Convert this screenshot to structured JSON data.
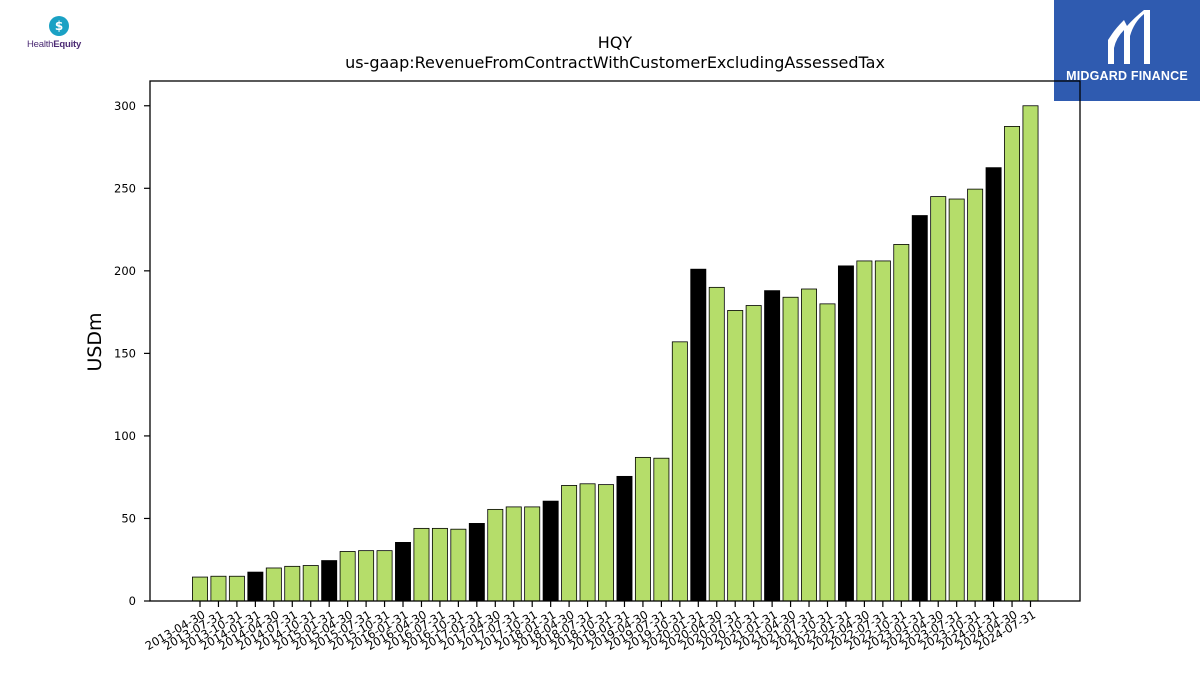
{
  "logos": {
    "left": {
      "name_prefix": "Health",
      "name_bold": "Equity",
      "mark_glyph": "$",
      "icon": "healthequity-logo"
    },
    "right": {
      "brand": "MIDGARD FINANCE",
      "icon": "midgard-finance-logo"
    }
  },
  "chart_data": {
    "type": "bar",
    "title": "HQY",
    "subtitle": "us-gaap:RevenueFromContractWithCustomerExcludingAssessedTax",
    "xlabel": "",
    "ylabel": "USDm",
    "ylim": [
      0,
      315
    ],
    "yticks": [
      0,
      50,
      100,
      150,
      200,
      250,
      300
    ],
    "grid": false,
    "colors": {
      "quarter": "#b5dd6a",
      "fiscal_q4": "#000000",
      "edge": "#000000"
    },
    "categories": [
      "2013-04-30",
      "2013-07-31",
      "2013-10-31",
      "2014-01-31",
      "2014-04-30",
      "2014-07-31",
      "2014-10-31",
      "2015-01-31",
      "2015-04-30",
      "2015-07-31",
      "2015-10-31",
      "2016-01-31",
      "2016-04-30",
      "2016-07-31",
      "2016-10-31",
      "2017-01-31",
      "2017-04-30",
      "2017-07-31",
      "2017-10-31",
      "2018-01-31",
      "2018-04-30",
      "2018-07-31",
      "2018-10-31",
      "2019-01-31",
      "2019-04-30",
      "2019-07-31",
      "2019-10-31",
      "2020-01-31",
      "2020-04-30",
      "2020-07-31",
      "2020-10-31",
      "2021-01-31",
      "2021-04-30",
      "2021-07-31",
      "2021-10-31",
      "2022-01-31",
      "2022-04-30",
      "2022-07-31",
      "2022-10-31",
      "2023-01-31",
      "2023-04-30",
      "2023-07-31",
      "2023-10-31",
      "2024-01-31",
      "2024-04-30",
      "2024-07-31"
    ],
    "values": [
      14.5,
      15,
      15,
      17.5,
      20,
      21,
      21.5,
      24.5,
      30,
      30.5,
      30.5,
      35.5,
      44,
      44,
      43.5,
      47,
      55.5,
      57,
      57,
      60.5,
      70,
      71,
      70.5,
      75.5,
      87,
      86.5,
      157,
      201,
      190,
      176,
      179,
      188,
      184,
      189,
      180,
      203,
      206,
      206,
      216,
      233.5,
      245,
      243.5,
      249.5,
      262.5,
      287.5,
      300
    ],
    "highlight": [
      false,
      false,
      false,
      true,
      false,
      false,
      false,
      true,
      false,
      false,
      false,
      true,
      false,
      false,
      false,
      true,
      false,
      false,
      false,
      true,
      false,
      false,
      false,
      true,
      false,
      false,
      false,
      true,
      false,
      false,
      false,
      true,
      false,
      false,
      false,
      true,
      false,
      false,
      false,
      true,
      false,
      false,
      false,
      true,
      false,
      false
    ]
  }
}
